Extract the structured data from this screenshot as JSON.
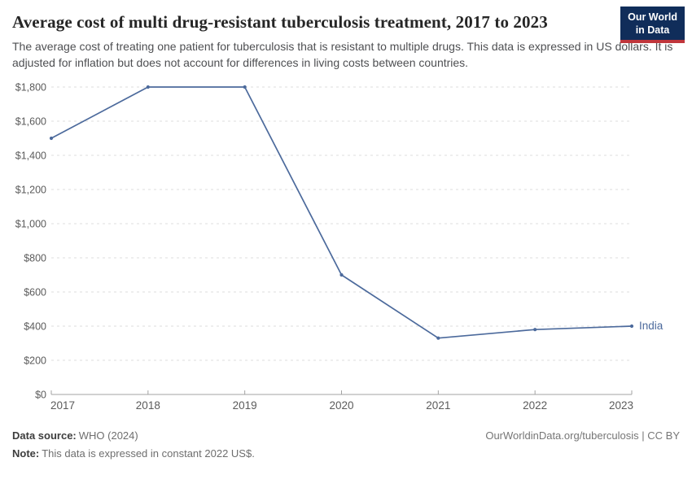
{
  "header": {
    "title": "Average cost of multi drug-resistant tuberculosis treatment, 2017 to 2023",
    "subtitle": "The average cost of treating one patient for tuberculosis that is resistant to multiple drugs. This data is expressed in US dollars. It is adjusted for inflation but does not account for differences in living costs between countries.",
    "logo": {
      "line1": "Our World",
      "line2": "in Data",
      "bg_color": "#102d5a",
      "accent_color": "#c0363c"
    }
  },
  "chart_data": {
    "type": "line",
    "title": "Average cost of multi drug-resistant tuberculosis treatment, 2017 to 2023",
    "x": [
      2017,
      2018,
      2019,
      2020,
      2021,
      2022,
      2023
    ],
    "series": [
      {
        "name": "India",
        "values": [
          1500,
          1800,
          1800,
          700,
          330,
          380,
          400
        ],
        "color": "#4c6a9c"
      }
    ],
    "xlabel": "",
    "ylabel": "",
    "ylim": [
      0,
      1800
    ],
    "ytick_step": 200,
    "currency_prefix": "$",
    "grid": "horizontal-dashed",
    "legend": "line-end-label",
    "colors": {
      "grid": "#dcdcdc",
      "axis": "#a3a3a3",
      "tick_text": "#5b5b5b"
    }
  },
  "footer": {
    "source_label": "Data source:",
    "source_value": "WHO (2024)",
    "note_label": "Note:",
    "note_value": "This data is expressed in constant 2022 US$.",
    "attribution": "OurWorldinData.org/tuberculosis | CC BY"
  }
}
